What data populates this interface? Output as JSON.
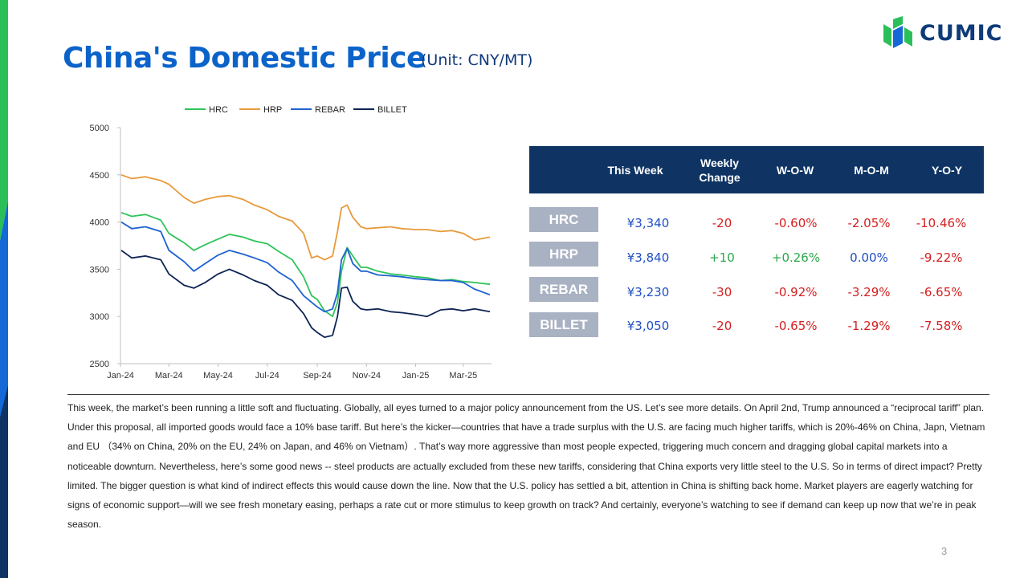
{
  "title": "China's Domestic Price",
  "unit": "(Unit: CNY/MT)",
  "logo_text": "CUMIC",
  "page_number": "3",
  "colors": {
    "title": "#0b63c9",
    "header_bg": "#0f3464",
    "label_bg": "#a9b2c2",
    "stripe_green": "#2bbf5a",
    "stripe_blue": "#1469d6"
  },
  "table": {
    "headers": [
      "This Week",
      "Weekly\nChange",
      "W-O-W",
      "M-O-M",
      "Y-O-Y"
    ],
    "rows": [
      {
        "label": "HRC",
        "this_week": "¥3,340",
        "weekly_change": "-20",
        "wow": "-0.60%",
        "mom": "-2.05%",
        "yoy": "-10.46%"
      },
      {
        "label": "HRP",
        "this_week": "¥3,840",
        "weekly_change": "+10",
        "wow": "+0.26%",
        "mom": "0.00%",
        "yoy": "-9.22%"
      },
      {
        "label": "REBAR",
        "this_week": "¥3,230",
        "weekly_change": "-30",
        "wow": "-0.92%",
        "mom": "-3.29%",
        "yoy": "-6.65%"
      },
      {
        "label": "BILLET",
        "this_week": "¥3,050",
        "weekly_change": "-20",
        "wow": "-0.65%",
        "mom": "-1.29%",
        "yoy": "-7.58%"
      }
    ]
  },
  "paragraph": "This week, the market’s been running a little soft and fluctuating. Globally, all eyes turned to a major policy announcement from the US. Let’s see more details. On April 2nd, Trump announced a “reciprocal tariff” plan. Under this proposal, all imported goods would face a 10% base tariff. But here’s the kicker—countries that have a trade surplus with the U.S. are facing much higher tariffs, which is 20%-46% on China, Japn, Vietnam and EU （34% on China, 20% on the EU, 24% on Japan, and 46% on Vietnam）. That’s way more aggressive than most people expected, triggering much concern and dragging global capital markets into a noticeable downturn. Nevertheless, here’s some good news -- steel products are actually excluded from these new tariffs, considering that China exports very little steel to the U.S. So in terms of direct impact? Pretty limited. The bigger question is what kind of indirect effects this would cause down the line. Now that the U.S. policy has settled a bit, attention in China is shifting back home. Market players are eagerly watching for signs of economic support—will we see fresh monetary easing, perhaps a rate cut or more stimulus to keep growth on track? And certainly, everyone’s watching to see if demand can keep up now that we’re in peak season.",
  "chart_data": {
    "type": "line",
    "x_ticks": [
      "Jan-24",
      "Mar-24",
      "May-24",
      "Jul-24",
      "Sep-24",
      "Nov-24",
      "Jan-25",
      "Mar-25"
    ],
    "y_ticks": [
      "2500",
      "3000",
      "3500",
      "4000",
      "4500",
      "5000"
    ],
    "ylim": [
      2500,
      5000
    ],
    "grid": false,
    "legend_position": "top",
    "series": [
      {
        "name": "HRC",
        "color": "#2ec45a",
        "x": [
          "2024-01-02",
          "2024-01-15",
          "2024-02-01",
          "2024-02-20",
          "2024-03-01",
          "2024-03-20",
          "2024-04-01",
          "2024-04-15",
          "2024-05-01",
          "2024-05-15",
          "2024-06-01",
          "2024-06-15",
          "2024-07-01",
          "2024-07-15",
          "2024-08-01",
          "2024-08-15",
          "2024-08-25",
          "2024-09-01",
          "2024-09-10",
          "2024-09-20",
          "2024-09-26",
          "2024-10-01",
          "2024-10-08",
          "2024-10-15",
          "2024-10-25",
          "2024-11-01",
          "2024-11-15",
          "2024-12-01",
          "2024-12-15",
          "2025-01-01",
          "2025-01-15",
          "2025-02-01",
          "2025-02-15",
          "2025-03-01",
          "2025-03-15",
          "2025-04-03"
        ],
        "y": [
          4100,
          4060,
          4080,
          4020,
          3880,
          3780,
          3700,
          3760,
          3820,
          3870,
          3840,
          3800,
          3770,
          3690,
          3600,
          3420,
          3220,
          3180,
          3060,
          3000,
          3150,
          3480,
          3730,
          3640,
          3520,
          3520,
          3480,
          3450,
          3440,
          3420,
          3410,
          3380,
          3390,
          3370,
          3360,
          3340
        ]
      },
      {
        "name": "HRP",
        "color": "#e89a3c",
        "x": [
          "2024-01-02",
          "2024-01-15",
          "2024-02-01",
          "2024-02-20",
          "2024-03-01",
          "2024-03-20",
          "2024-04-01",
          "2024-04-15",
          "2024-05-01",
          "2024-05-15",
          "2024-06-01",
          "2024-06-15",
          "2024-07-01",
          "2024-07-15",
          "2024-08-01",
          "2024-08-15",
          "2024-08-25",
          "2024-09-01",
          "2024-09-10",
          "2024-09-20",
          "2024-09-26",
          "2024-10-01",
          "2024-10-08",
          "2024-10-15",
          "2024-10-25",
          "2024-11-01",
          "2024-11-15",
          "2024-12-01",
          "2024-12-15",
          "2025-01-01",
          "2025-01-15",
          "2025-02-01",
          "2025-02-15",
          "2025-03-01",
          "2025-03-15",
          "2025-04-03"
        ],
        "y": [
          4500,
          4460,
          4480,
          4440,
          4400,
          4260,
          4200,
          4240,
          4270,
          4280,
          4240,
          4180,
          4130,
          4060,
          4010,
          3880,
          3620,
          3640,
          3600,
          3640,
          3900,
          4150,
          4180,
          4050,
          3950,
          3930,
          3940,
          3950,
          3930,
          3920,
          3920,
          3900,
          3910,
          3880,
          3810,
          3840
        ]
      },
      {
        "name": "REBAR",
        "color": "#1e62d0",
        "x": [
          "2024-01-02",
          "2024-01-15",
          "2024-02-01",
          "2024-02-20",
          "2024-03-01",
          "2024-03-20",
          "2024-04-01",
          "2024-04-15",
          "2024-05-01",
          "2024-05-15",
          "2024-06-01",
          "2024-06-15",
          "2024-07-01",
          "2024-07-15",
          "2024-08-01",
          "2024-08-15",
          "2024-08-25",
          "2024-09-01",
          "2024-09-10",
          "2024-09-20",
          "2024-09-26",
          "2024-10-01",
          "2024-10-08",
          "2024-10-15",
          "2024-10-25",
          "2024-11-01",
          "2024-11-15",
          "2024-12-01",
          "2024-12-15",
          "2025-01-01",
          "2025-01-15",
          "2025-02-01",
          "2025-02-15",
          "2025-03-01",
          "2025-03-15",
          "2025-04-03"
        ],
        "y": [
          4000,
          3930,
          3950,
          3900,
          3700,
          3580,
          3480,
          3560,
          3650,
          3700,
          3660,
          3620,
          3570,
          3470,
          3380,
          3220,
          3150,
          3100,
          3050,
          3080,
          3250,
          3600,
          3720,
          3560,
          3480,
          3480,
          3440,
          3430,
          3420,
          3400,
          3390,
          3380,
          3380,
          3360,
          3290,
          3230
        ]
      },
      {
        "name": "BILLET",
        "color": "#0d2454",
        "x": [
          "2024-01-02",
          "2024-01-15",
          "2024-02-01",
          "2024-02-20",
          "2024-03-01",
          "2024-03-20",
          "2024-04-01",
          "2024-04-15",
          "2024-05-01",
          "2024-05-15",
          "2024-06-01",
          "2024-06-15",
          "2024-07-01",
          "2024-07-15",
          "2024-08-01",
          "2024-08-15",
          "2024-08-25",
          "2024-09-01",
          "2024-09-10",
          "2024-09-20",
          "2024-09-26",
          "2024-10-01",
          "2024-10-08",
          "2024-10-15",
          "2024-10-25",
          "2024-11-01",
          "2024-11-15",
          "2024-12-01",
          "2024-12-15",
          "2025-01-01",
          "2025-01-15",
          "2025-02-01",
          "2025-02-15",
          "2025-03-01",
          "2025-03-15",
          "2025-04-03"
        ],
        "y": [
          3700,
          3620,
          3640,
          3600,
          3450,
          3330,
          3300,
          3360,
          3450,
          3500,
          3440,
          3380,
          3330,
          3230,
          3170,
          3030,
          2880,
          2830,
          2780,
          2800,
          3000,
          3300,
          3310,
          3160,
          3080,
          3070,
          3080,
          3050,
          3040,
          3020,
          3000,
          3070,
          3080,
          3060,
          3080,
          3050
        ]
      }
    ]
  }
}
